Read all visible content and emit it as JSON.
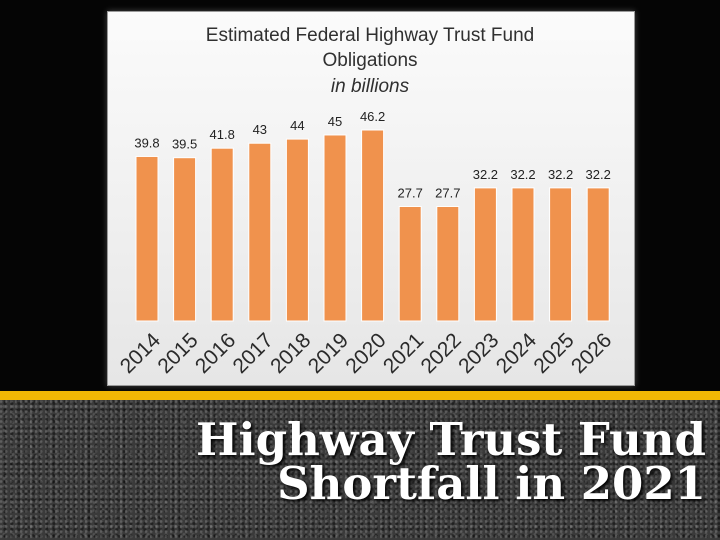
{
  "slide": {
    "title_line1": "Highway Trust Fund",
    "title_line2": "Shortfall in 2021",
    "stripe_color": "#f2b705"
  },
  "chart_data": {
    "type": "bar",
    "title": "Estimated Federal Highway Trust Fund",
    "title_line2": "Obligations",
    "subtitle": "in billions",
    "categories": [
      "2014",
      "2015",
      "2016",
      "2017",
      "2018",
      "2019",
      "2020",
      "2021",
      "2022",
      "2023",
      "2024",
      "2025",
      "2026"
    ],
    "values": [
      39.8,
      39.5,
      41.8,
      43,
      44,
      45,
      46.2,
      27.7,
      27.7,
      32.2,
      32.2,
      32.2,
      32.2
    ],
    "data_labels": [
      "39.8",
      "39.5",
      "41.8",
      "43",
      "44",
      "45",
      "46.2",
      "27.7",
      "27.7",
      "32.2",
      "32.2",
      "32.2",
      "32.2"
    ],
    "bar_color": "#f0924d",
    "ylim": [
      0,
      46.2
    ],
    "grid": false,
    "legend": "none"
  }
}
